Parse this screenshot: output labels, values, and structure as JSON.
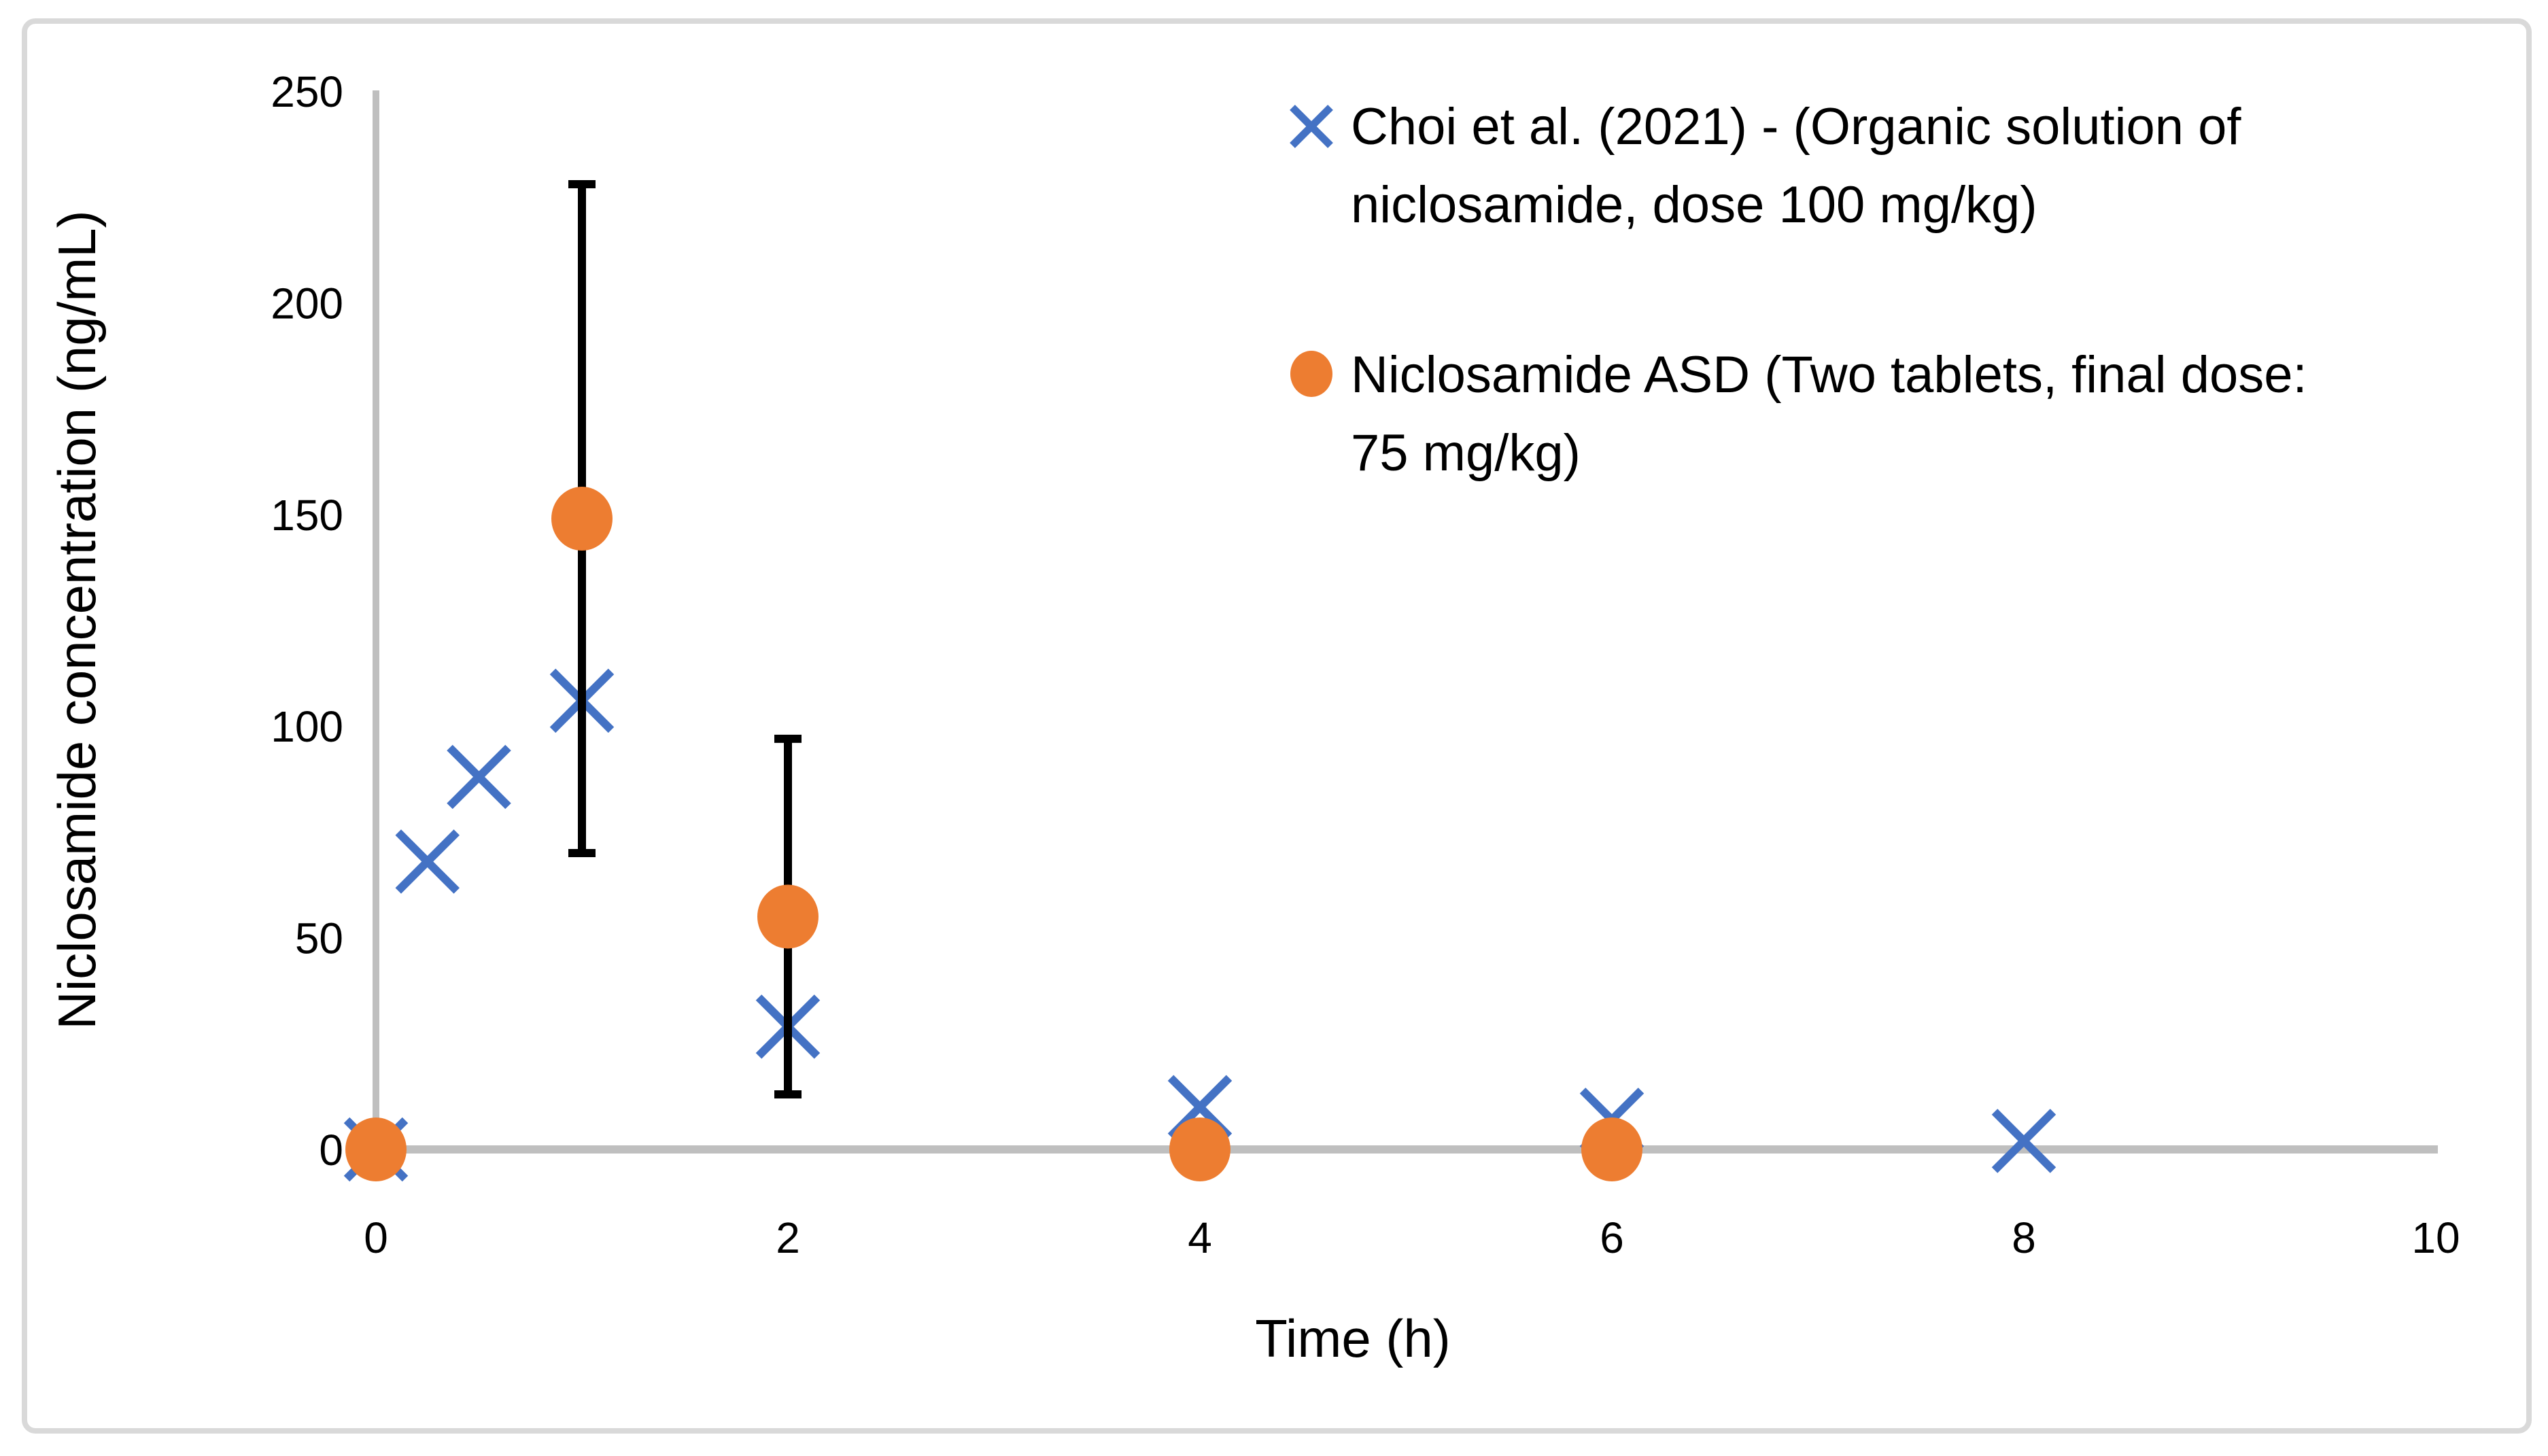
{
  "chart_data": {
    "type": "scatter",
    "title": "",
    "xlabel": "Time (h)",
    "ylabel": "Niclosamide concentration (ng/mL)",
    "xlim": [
      0,
      10
    ],
    "ylim": [
      0,
      250
    ],
    "x_ticks": [
      0,
      2,
      4,
      6,
      8,
      10
    ],
    "y_ticks": [
      0,
      50,
      100,
      150,
      200,
      250
    ],
    "grid": false,
    "legend_position": "top-right",
    "series": [
      {
        "name": "Choi et al. (2021) - (Organic solution of niclosamide, dose 100 mg/kg)",
        "marker": "x",
        "color": "#4472C4",
        "points": [
          {
            "x": 0,
            "y": 0
          },
          {
            "x": 0.25,
            "y": 68
          },
          {
            "x": 0.5,
            "y": 88
          },
          {
            "x": 1,
            "y": 106
          },
          {
            "x": 2,
            "y": 29
          },
          {
            "x": 4,
            "y": 10
          },
          {
            "x": 6,
            "y": 7
          },
          {
            "x": 8,
            "y": 2
          }
        ]
      },
      {
        "name": "Niclosamide ASD (Two tablets, final dose: 75 mg/kg)",
        "marker": "circle",
        "color": "#ED7D31",
        "error_bar_color": "#000000",
        "points": [
          {
            "x": 0,
            "y": 0
          },
          {
            "x": 1,
            "y": 149,
            "err": 79
          },
          {
            "x": 2,
            "y": 55,
            "err": 42
          },
          {
            "x": 4,
            "y": 0
          },
          {
            "x": 6,
            "y": 0
          }
        ]
      }
    ]
  },
  "axes": {
    "x_title": "Time (h)",
    "y_title": "Niclosamide concentration (ng/mL)",
    "x_tick_labels": [
      "0",
      "2",
      "4",
      "6",
      "8",
      "10"
    ],
    "y_tick_labels": [
      "0",
      "50",
      "100",
      "150",
      "200",
      "250"
    ]
  },
  "legend": {
    "entries": [
      {
        "marker": "x-marker",
        "line1": "Choi et al. (2021) - (Organic solution of",
        "line2": "niclosamide, dose 100 mg/kg)"
      },
      {
        "marker": "circle-marker",
        "line1": "Niclosamide ASD (Two tablets, final dose:",
        "line2": "75 mg/kg)"
      }
    ]
  },
  "colors": {
    "series1": "#4472C4",
    "series2": "#ED7D31",
    "error_bar": "#000000",
    "axis_line": "#BFBFBF",
    "chart_border": "#D9D9D9",
    "text": "#000000"
  }
}
